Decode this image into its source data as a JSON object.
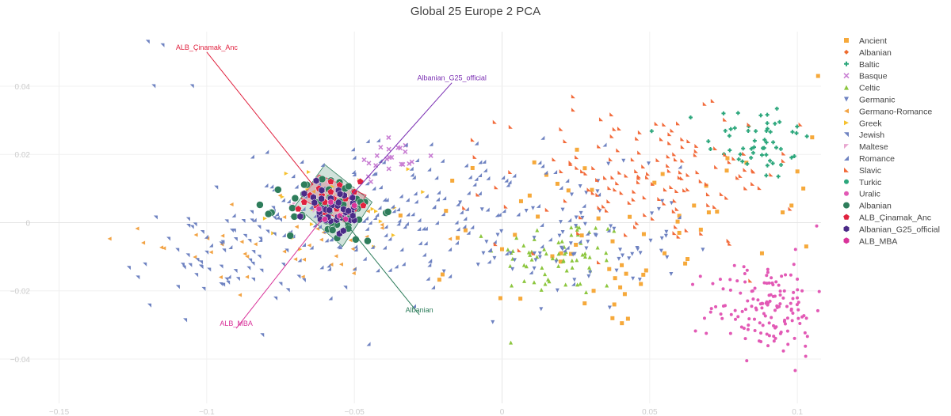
{
  "chart_data": {
    "type": "scatter",
    "title": "Global 25 Europe 2 PCA",
    "xlabel": "",
    "ylabel": "",
    "xlim": [
      -0.17,
      0.108
    ],
    "ylim": [
      -0.053,
      0.056
    ],
    "xticks": [
      -0.15,
      -0.1,
      -0.05,
      0,
      0.05,
      0.1
    ],
    "xtick_labels": [
      "−0.15",
      "−0.1",
      "−0.05",
      "0",
      "0.05",
      "0.1"
    ],
    "yticks": [
      -0.04,
      -0.02,
      0,
      0.02,
      0.04
    ],
    "ytick_labels": [
      "−0.04",
      "−0.02",
      "0",
      "0.02",
      "0.04"
    ],
    "grid": true,
    "legend_position": "right",
    "series": [
      {
        "name": "Ancient",
        "color": "#f6a93b",
        "marker": "square",
        "size": 5,
        "cluster": {
          "cx": 0.03,
          "cy": -0.004,
          "sx": 0.035,
          "sy": 0.015,
          "n": 50
        },
        "points": [
          [
            0.107,
            0.043
          ],
          [
            0.105,
            0.025
          ],
          [
            0.1,
            0.015
          ],
          [
            0.102,
            0.01
          ],
          [
            0.098,
            0.005
          ],
          [
            0.095,
            0.003
          ],
          [
            0.103,
            -0.007
          ],
          [
            0.088,
            -0.009
          ],
          [
            0.06,
            -0.003
          ],
          [
            0.055,
            -0.009
          ],
          [
            0.047,
            -0.018
          ],
          [
            0.04,
            -0.019
          ],
          [
            0.042,
            -0.015
          ],
          [
            0.031,
            -0.02
          ],
          [
            0.038,
            -0.024
          ],
          [
            0.015,
            0.014
          ],
          [
            -0.01,
            0.016
          ],
          [
            0.02,
            -0.009
          ],
          [
            0.06,
            0.002
          ],
          [
            0.065,
            0.005
          ],
          [
            0.07,
            0.003
          ],
          [
            0.062,
            -0.012
          ]
        ]
      },
      {
        "name": "Albanian",
        "color": "#ee6a2c",
        "marker": "diamond",
        "size": 4,
        "points": []
      },
      {
        "name": "Baltic",
        "color": "#2ca77c",
        "marker": "cross",
        "size": 5,
        "cluster": {
          "cx": 0.087,
          "cy": 0.024,
          "sx": 0.009,
          "sy": 0.006,
          "n": 55
        },
        "points": []
      },
      {
        "name": "Basque",
        "color": "#c97fd3",
        "marker": "x",
        "size": 5,
        "cluster": {
          "cx": -0.038,
          "cy": 0.019,
          "sx": 0.006,
          "sy": 0.004,
          "n": 22
        },
        "points": []
      },
      {
        "name": "Celtic",
        "color": "#8cc63e",
        "marker": "triangle-up",
        "size": 5,
        "cluster": {
          "cx": 0.02,
          "cy": -0.01,
          "sx": 0.011,
          "sy": 0.006,
          "n": 70
        },
        "points": []
      },
      {
        "name": "Germanic",
        "color": "#6e82c1",
        "marker": "triangle-down",
        "size": 5,
        "cluster": {
          "cx": 0.025,
          "cy": -0.006,
          "sx": 0.018,
          "sy": 0.01,
          "n": 80
        },
        "points": []
      },
      {
        "name": "Germano-Romance",
        "color": "#f2a344",
        "marker": "triangle-left",
        "size": 5,
        "cluster": {
          "cx": -0.07,
          "cy": -0.005,
          "sx": 0.025,
          "sy": 0.007,
          "n": 45
        },
        "points": []
      },
      {
        "name": "Greek",
        "color": "#f6c12e",
        "marker": "triangle-right",
        "size": 5,
        "cluster": {
          "cx": -0.055,
          "cy": 0.004,
          "sx": 0.012,
          "sy": 0.006,
          "n": 30
        },
        "points": []
      },
      {
        "name": "Jewish",
        "color": "#6e82c1",
        "marker": "triangle-ne",
        "size": 5,
        "cluster": {
          "cx": -0.095,
          "cy": -0.01,
          "sx": 0.015,
          "sy": 0.008,
          "n": 70
        },
        "points": [
          [
            -0.12,
            0.053
          ],
          [
            -0.115,
            0.052
          ],
          [
            -0.118,
            0.04
          ],
          [
            -0.105,
            0.04
          ]
        ]
      },
      {
        "name": "Maltese",
        "color": "#e8a6cf",
        "marker": "triangle-nw",
        "size": 5,
        "cluster": {
          "cx": -0.06,
          "cy": 0.006,
          "sx": 0.005,
          "sy": 0.003,
          "n": 12
        },
        "points": []
      },
      {
        "name": "Romance",
        "color": "#6e82c1",
        "marker": "triangle-se",
        "size": 5,
        "cluster": {
          "cx": -0.03,
          "cy": 0.003,
          "sx": 0.03,
          "sy": 0.01,
          "n": 200
        },
        "points": []
      },
      {
        "name": "Slavic",
        "color": "#f26a3a",
        "marker": "triangle-sw",
        "size": 5,
        "cluster": {
          "cx": 0.05,
          "cy": 0.013,
          "sx": 0.025,
          "sy": 0.01,
          "n": 150
        },
        "points": []
      },
      {
        "name": "Turkic",
        "color": "#2ca77c",
        "marker": "circle",
        "size": 4,
        "points": []
      },
      {
        "name": "Uralic",
        "color": "#e259b5",
        "marker": "circle",
        "size": 4,
        "cluster": {
          "cx": 0.09,
          "cy": -0.025,
          "sx": 0.01,
          "sy": 0.007,
          "n": 150
        },
        "points": []
      },
      {
        "name": "Albanian",
        "color": "#2e7d5b",
        "marker": "circle",
        "size": 9,
        "cluster": {
          "cx": -0.057,
          "cy": 0.004,
          "sx": 0.008,
          "sy": 0.005,
          "n": 60
        },
        "points": []
      },
      {
        "name": "ALB_Çinamak_Anc",
        "color": "#e0223f",
        "marker": "pentagon",
        "size": 9,
        "points": [
          [
            -0.065,
            0.008
          ],
          [
            -0.062,
            0.01
          ],
          [
            -0.06,
            0.006
          ],
          [
            -0.058,
            0.009
          ],
          [
            -0.055,
            0.011
          ],
          [
            -0.053,
            0.007
          ],
          [
            -0.05,
            0.009
          ],
          [
            -0.048,
            0.012
          ],
          [
            -0.047,
            0.005
          ],
          [
            -0.052,
            0.003
          ],
          [
            -0.056,
            0.004
          ],
          [
            -0.06,
            0.003
          ],
          [
            -0.063,
            0.005
          ],
          [
            -0.067,
            0.006
          ],
          [
            -0.058,
            0.012
          ],
          [
            -0.054,
            0.002
          ],
          [
            -0.061,
            0.008
          ],
          [
            -0.05,
            0.004
          ],
          [
            -0.069,
            0.004
          ],
          [
            -0.057,
            0.007
          ]
        ]
      },
      {
        "name": "Albanian_G25_official",
        "color": "#4a2a87",
        "marker": "hexagon",
        "size": 9,
        "cluster": {
          "cx": -0.057,
          "cy": 0.004,
          "sx": 0.005,
          "sy": 0.004,
          "n": 40
        },
        "points": []
      },
      {
        "name": "ALB_MBA",
        "color": "#d9339a",
        "marker": "hexagon",
        "size": 8,
        "points": [
          [
            -0.062,
            0.004
          ],
          [
            -0.055,
            0.002
          ],
          [
            -0.058,
            0.006
          ],
          [
            -0.05,
            0.005
          ],
          [
            -0.053,
            0.001
          ],
          [
            -0.06,
            0.001
          ]
        ]
      }
    ],
    "annotations": [
      {
        "text": "ALB_Çinamak_Anc",
        "x": -0.1,
        "y": 0.05,
        "to_x": -0.064,
        "to_y": 0.011,
        "color": "#e0223f"
      },
      {
        "text": "Albanian_G25_official",
        "x": -0.017,
        "y": 0.041,
        "to_x": -0.052,
        "to_y": 0.007,
        "color": "#7b2fb3"
      },
      {
        "text": "Albanian",
        "x": -0.028,
        "y": -0.027,
        "to_x": -0.055,
        "to_y": 0.002,
        "color": "#2e7d5b"
      },
      {
        "text": "ALB_MBA",
        "x": -0.09,
        "y": -0.031,
        "to_x": -0.061,
        "to_y": 0.001,
        "color": "#d9339a"
      }
    ],
    "hulls": [
      {
        "color": "#2e7d5b",
        "points": [
          [
            -0.07,
            0.005
          ],
          [
            -0.06,
            0.017
          ],
          [
            -0.044,
            0.006
          ],
          [
            -0.054,
            -0.007
          ]
        ]
      },
      {
        "color": "#e0223f",
        "points": [
          [
            -0.068,
            0.007
          ],
          [
            -0.062,
            0.014
          ],
          [
            -0.046,
            0.008
          ],
          [
            -0.053,
            0.0
          ]
        ]
      }
    ]
  }
}
